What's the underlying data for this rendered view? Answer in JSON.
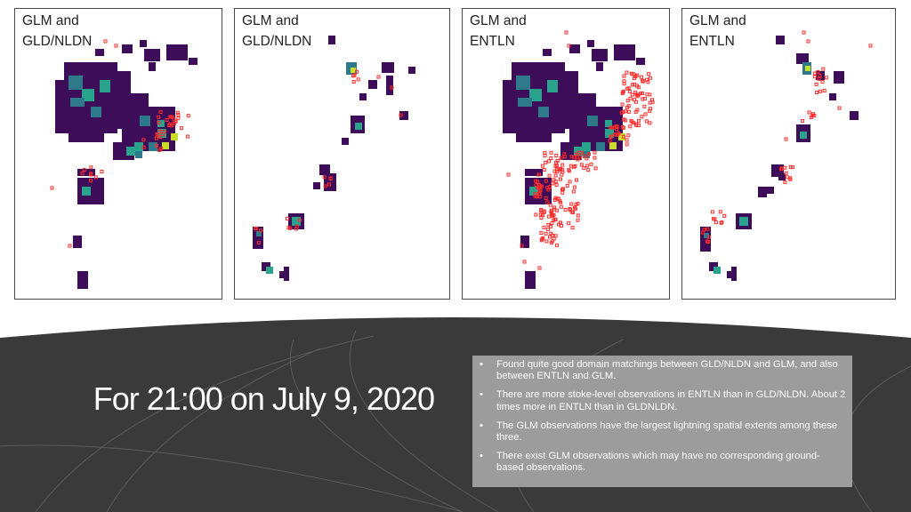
{
  "panels": [
    {
      "title": "GLM and\nGLD/NLDN"
    },
    {
      "title": "GLM and\nGLD/NLDN"
    },
    {
      "title": "GLM and\nENTLN"
    },
    {
      "title": "GLM and\nENTLN"
    }
  ],
  "slide_title": "For 21:00 on July 9, 2020",
  "notes": {
    "bullet_icon": "•",
    "items": [
      "Found quite good domain matchings between GLD/NLDN and GLM, and also between ENTLN and GLM.",
      "There are more stoke-level observations in ENTLN than in GLD/NLDN. About 2 times more in ENTLN than in GLDNLDN.",
      "The GLM observations have the largest lightning spatial extents among these three.",
      "There exist GLM observations which may have no corresponding ground-based observations."
    ]
  },
  "colors": {
    "cell_low": "#3d0d5a",
    "cell_mid": "#2f7a8a",
    "cell_teal": "#2aa38c",
    "cell_high": "#c8df2a",
    "obs_marker": "#ff2a2a",
    "background_dark": "#3a3a3a",
    "notes_box": "#9c9c9c"
  }
}
